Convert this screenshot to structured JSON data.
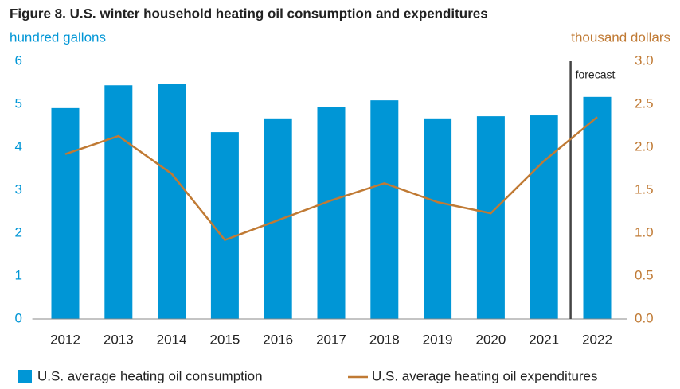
{
  "chart_data": {
    "type": "bar+line",
    "title": "Figure 8. U.S. winter household heating oil consumption and expenditures",
    "y_label": "hundred gallons",
    "y2_label": "thousand dollars",
    "annotation": "forecast",
    "categories": [
      "2012",
      "2013",
      "2014",
      "2015",
      "2016",
      "2017",
      "2018",
      "2019",
      "2020",
      "2021",
      "2022"
    ],
    "series": [
      {
        "name": "U.S. average heating oil consumption",
        "type": "bar",
        "color": "#0096d6",
        "values": [
          4.91,
          5.44,
          5.48,
          4.35,
          4.67,
          4.94,
          5.09,
          4.67,
          4.72,
          4.74,
          5.17
        ]
      },
      {
        "name": "U.S. average heating oil expenditures",
        "type": "line",
        "color": "#c07a34",
        "axis": "y2",
        "values": [
          1.92,
          2.13,
          1.69,
          0.92,
          1.15,
          1.38,
          1.58,
          1.36,
          1.23,
          1.84,
          2.35
        ]
      }
    ],
    "ylim": [
      0,
      6
    ],
    "yticks": [
      0,
      1,
      2,
      3,
      4,
      5,
      6
    ],
    "y2lim": [
      0,
      3
    ],
    "y2ticks": [
      {
        "value": 0,
        "label": "0.0"
      },
      0.5,
      {
        "value": 1,
        "label": "1.0"
      },
      1.5,
      {
        "value": 2,
        "label": "2.0"
      },
      2.5,
      {
        "value": 3,
        "label": "3.0"
      }
    ]
  }
}
